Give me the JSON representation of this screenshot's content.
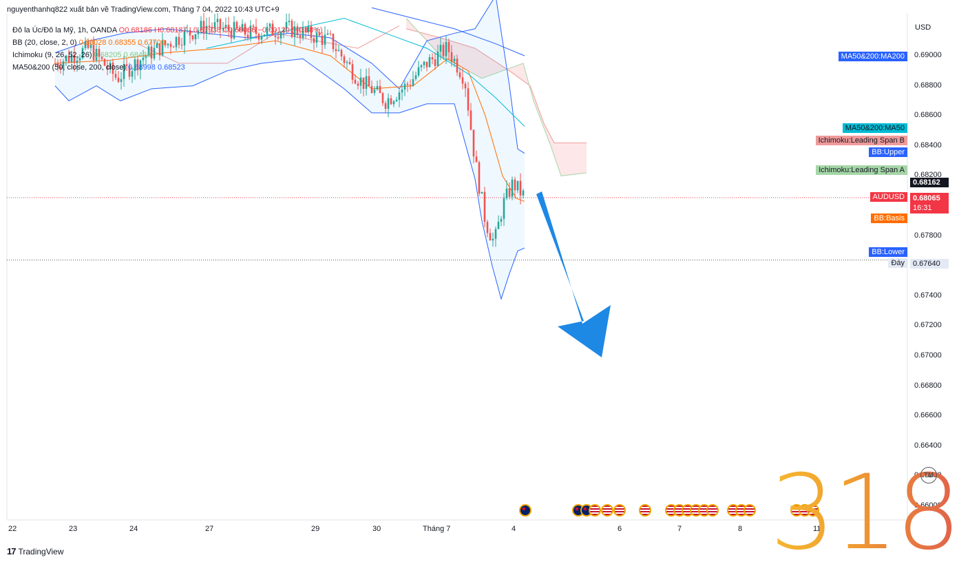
{
  "publisher": "nguyenthanhq822 xuất bản về TradingView.com, Tháng 7 04, 2022 10:43 UTC+9",
  "legend": [
    {
      "name": "Đô la Úc/Đô la Mỹ, 1h, OANDA",
      "values": "O0.68186  H0.68187  L0.67938  C0.68066  −0.00120 (−0.18%)",
      "color": "#f23645"
    },
    {
      "name": "BB (20, close, 2, 0)",
      "values": "0.68028  0.68355  0.67700",
      "color": "#ff6d00"
    },
    {
      "name": "Ichimoku (9, 26, 52, 26)",
      "values": "0.68205  0.68433",
      "color": "#81c784"
    },
    {
      "name": "MA50&200 (50, close, 200, close)",
      "values": "0.68998  0.68523",
      "color": "#2962ff"
    }
  ],
  "currency": "USD",
  "price_labels": [
    {
      "text": "MA50&200:MA200",
      "bg": "#2962ff",
      "fg": "#ffffff",
      "y": 83
    },
    {
      "text": "MA50&200:MA50",
      "bg": "#00bcd4",
      "fg": "#131722",
      "y": 187
    },
    {
      "text": "Ichimoku:Leading Span B",
      "bg": "#ef9a9a",
      "fg": "#131722",
      "y": 205
    },
    {
      "text": "BB:Upper",
      "bg": "#2962ff",
      "fg": "#ffffff",
      "y": 222
    },
    {
      "text": "Ichimoku:Leading Span A",
      "bg": "#a5d6a7",
      "fg": "#131722",
      "y": 248
    },
    {
      "text": "AUDUSD",
      "bg": "#f23645",
      "fg": "#ffffff",
      "y": 287
    },
    {
      "text": "BB:Basis",
      "bg": "#ff6d00",
      "fg": "#ffffff",
      "y": 318
    },
    {
      "text": "BB:Lower",
      "bg": "#2962ff",
      "fg": "#ffffff",
      "y": 367
    },
    {
      "text": "Đáy",
      "bg": "#e3eaf5",
      "fg": "#131722",
      "y": 383
    }
  ],
  "axis_badges": {
    "current": "0.68162",
    "last": "0.68065",
    "countdown": "16:31",
    "low": "0.67640"
  },
  "watermark": "318",
  "tm": "TM",
  "footer": "TradingView",
  "chart_data": {
    "type": "candlestick",
    "symbol": "AUDUSD",
    "ylim": [
      0.6596,
      0.692
    ],
    "y_ticks": [
      "0.69000",
      "0.68800",
      "0.68600",
      "0.68400",
      "0.68200",
      "0.68000",
      "0.67800",
      "0.67600",
      "0.67400",
      "0.67200",
      "0.67000",
      "0.66800",
      "0.66600",
      "0.66400",
      "0.66200",
      "0.66000"
    ],
    "x_ticks": [
      "22",
      "23",
      "24",
      "27",
      "29",
      "30",
      "Tháng 7",
      "4",
      "6",
      "7",
      "8",
      "11"
    ],
    "series": [
      {
        "name": "BB:Upper",
        "values": [
          0.685,
          0.6868,
          0.6836
        ]
      },
      {
        "name": "BB:Basis",
        "values": [
          0.682,
          0.6822,
          0.6803
        ]
      },
      {
        "name": "BB:Lower",
        "values": [
          0.679,
          0.6738,
          0.677
        ]
      },
      {
        "name": "MA50&200:MA200",
        "values": [
          0.6927,
          0.6918,
          0.69
        ]
      },
      {
        "name": "MA50&200:MA50",
        "values": [
          0.691,
          0.6885,
          0.6853
        ]
      },
      {
        "name": "Ichimoku:Leading Span B",
        "values": [
          0.689,
          0.6842,
          0.6842
        ]
      },
      {
        "name": "Ichimoku:Leading Span A",
        "values": [
          0.6895,
          0.682,
          0.682
        ]
      }
    ],
    "last_price": 0.68065,
    "current_price": 0.68162,
    "support": 0.6764,
    "annotation": "down-arrow"
  }
}
